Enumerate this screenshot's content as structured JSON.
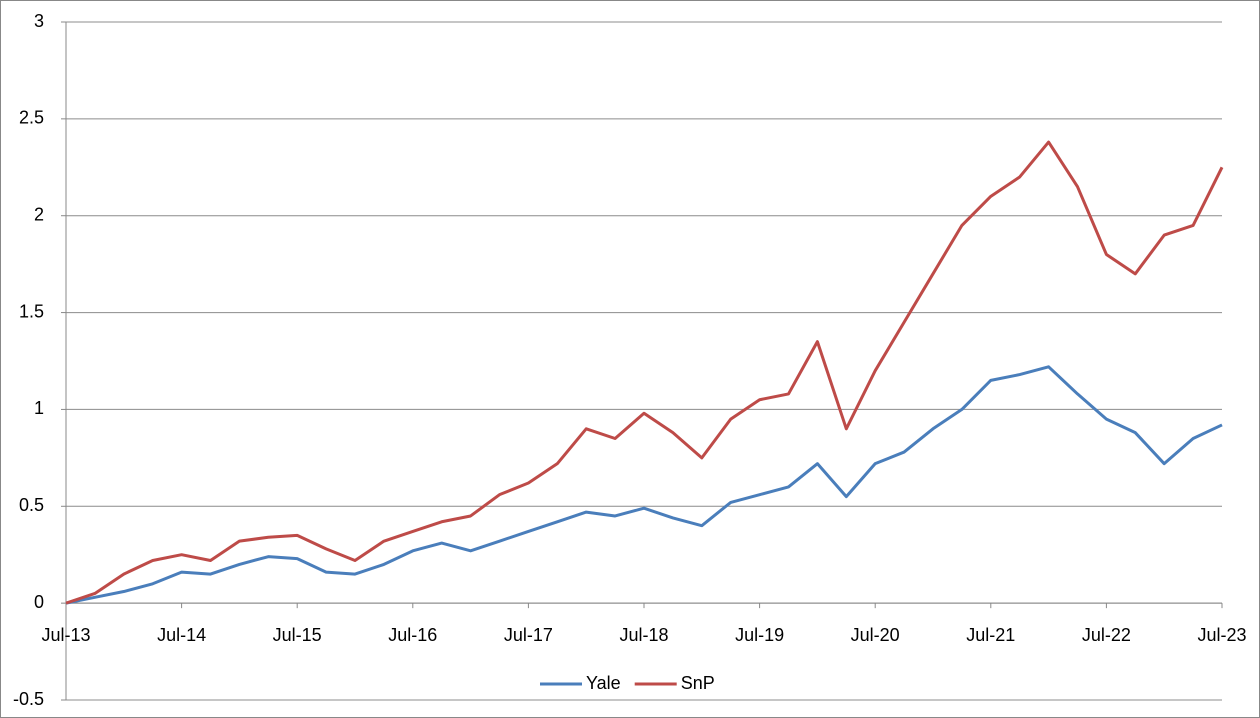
{
  "chart_data": {
    "type": "line",
    "categories": [
      "Jul-13",
      null,
      null,
      null,
      "Jul-14",
      null,
      null,
      null,
      "Jul-15",
      null,
      null,
      null,
      "Jul-16",
      null,
      null,
      null,
      "Jul-17",
      null,
      null,
      null,
      "Jul-18",
      null,
      null,
      null,
      "Jul-19",
      null,
      null,
      null,
      "Jul-20",
      null,
      null,
      null,
      "Jul-21",
      null,
      null,
      null,
      "Jul-22",
      null,
      null,
      null,
      "Jul-23"
    ],
    "series": [
      {
        "name": "Yale",
        "color": "#4a7ebb",
        "values": [
          0,
          0.03,
          0.06,
          0.1,
          0.16,
          0.15,
          0.2,
          0.24,
          0.23,
          0.16,
          0.15,
          0.2,
          0.27,
          0.31,
          0.27,
          0.32,
          0.37,
          0.42,
          0.47,
          0.45,
          0.49,
          0.44,
          0.4,
          0.52,
          0.56,
          0.6,
          0.72,
          0.55,
          0.72,
          0.78,
          0.9,
          1.0,
          1.15,
          1.18,
          1.22,
          1.08,
          0.95,
          0.88,
          0.72,
          0.85,
          0.92
        ]
      },
      {
        "name": "SnP",
        "color": "#be4b48",
        "values": [
          0,
          0.05,
          0.15,
          0.22,
          0.25,
          0.22,
          0.32,
          0.34,
          0.35,
          0.28,
          0.22,
          0.32,
          0.37,
          0.42,
          0.45,
          0.56,
          0.62,
          0.72,
          0.9,
          0.85,
          0.98,
          0.88,
          0.75,
          0.95,
          1.05,
          1.08,
          1.35,
          0.9,
          1.2,
          1.45,
          1.7,
          1.95,
          2.1,
          2.2,
          2.38,
          2.15,
          1.8,
          1.7,
          1.9,
          1.95,
          2.25
        ]
      }
    ],
    "ylim": [
      -0.5,
      3
    ],
    "yticks": [
      -0.5,
      0,
      0.5,
      1,
      1.5,
      2,
      2.5,
      3
    ],
    "grid": true,
    "legend": "bottom"
  }
}
